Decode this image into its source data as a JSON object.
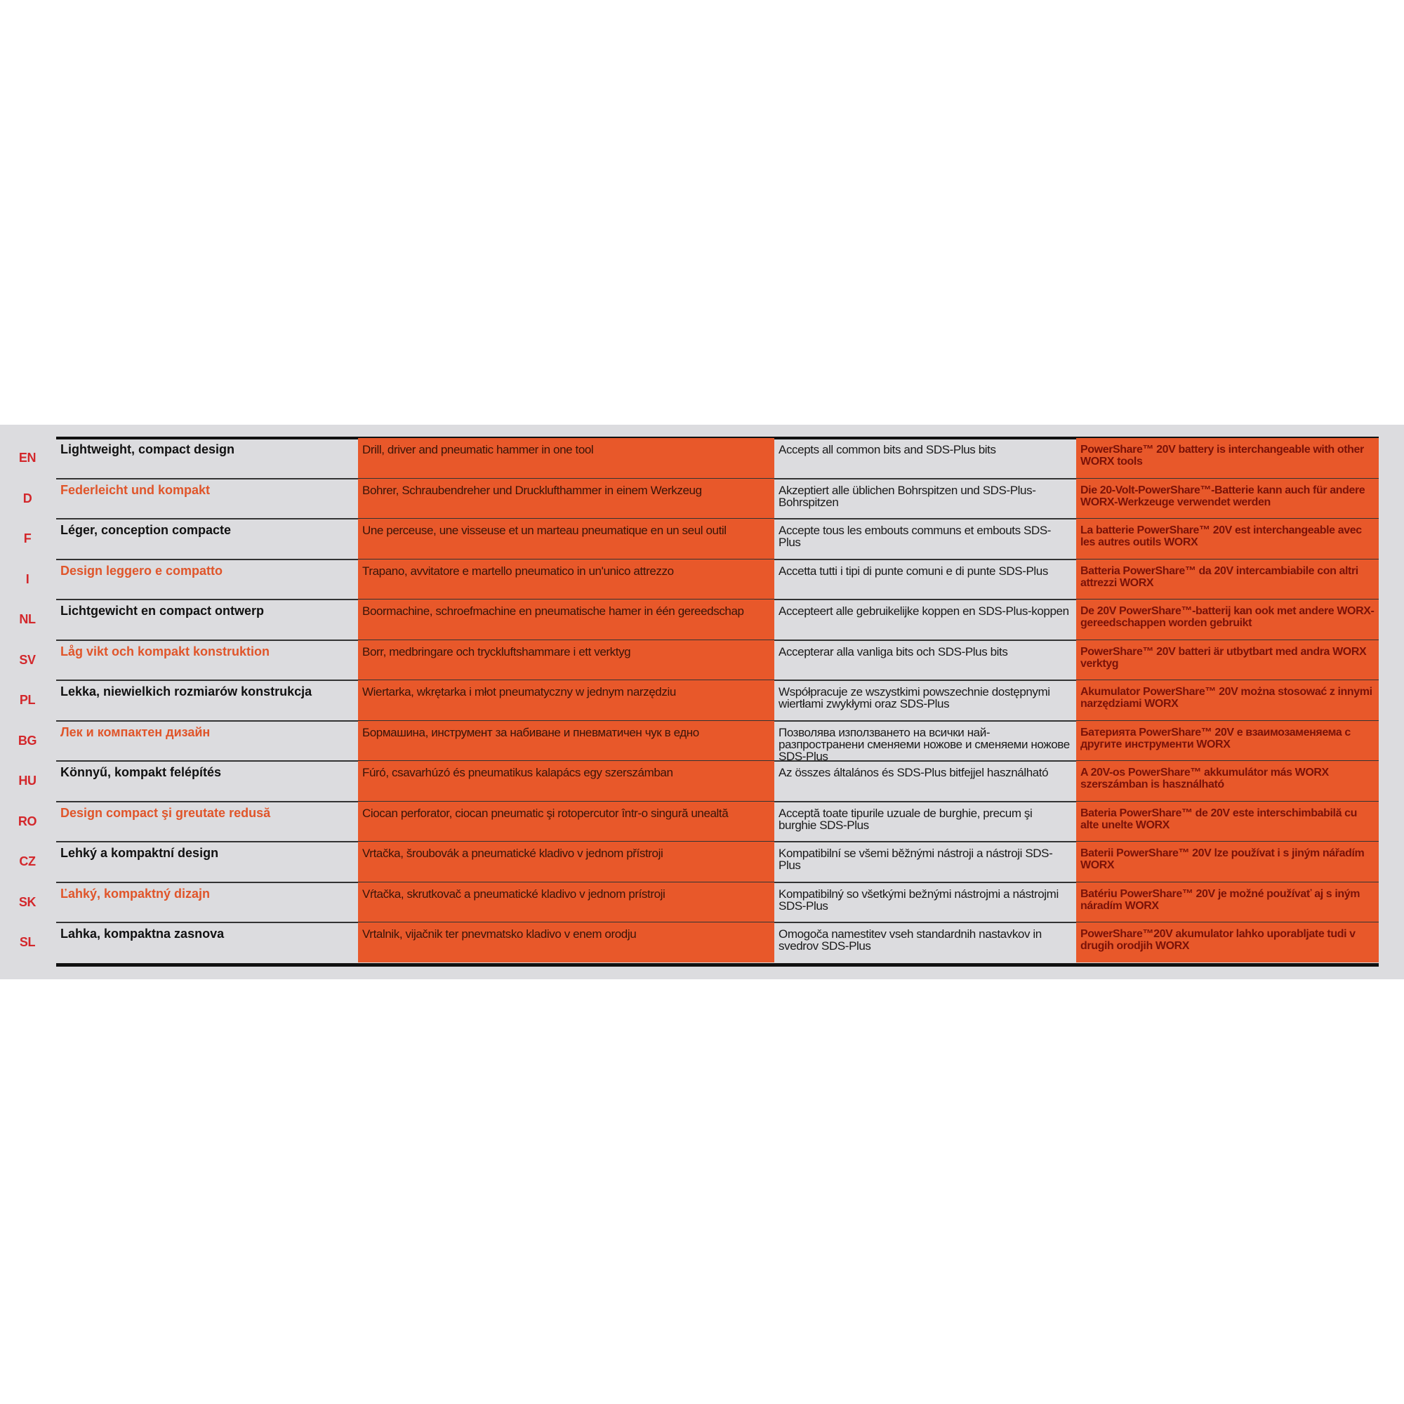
{
  "rows": [
    {
      "code": "EN",
      "feature": "Lightweight, compact design",
      "tool": "Drill, driver and pneumatic hammer in one tool",
      "bits": "Accepts all common bits and SDS-Plus bits",
      "battery": "PowerShare™ 20V battery is interchangeable with other WORX tools"
    },
    {
      "code": "D",
      "feature": "Federleicht und kompakt",
      "tool": "Bohrer, Schraubendreher und Drucklufthammer in einem Werkzeug",
      "bits": "Akzeptiert alle üblichen Bohrspitzen und SDS-Plus-Bohrspitzen",
      "battery": "Die 20-Volt-PowerShare™-Batterie kann auch für andere WORX-Werkzeuge verwendet werden"
    },
    {
      "code": "F",
      "feature": "Léger, conception compacte",
      "tool": "Une perceuse, une visseuse et un marteau pneumatique en un seul outil",
      "bits": "Accepte tous les embouts communs et embouts SDS-Plus",
      "battery": "La batterie PowerShare™ 20V est interchangeable avec les autres outils WORX"
    },
    {
      "code": "I",
      "feature": "Design leggero e compatto",
      "tool": "Trapano, avvitatore e martello pneumatico in un'unico attrezzo",
      "bits": "Accetta tutti i tipi di punte comuni e di punte SDS-Plus",
      "battery": "Batteria PowerShare™ da 20V intercambiabile con altri attrezzi WORX"
    },
    {
      "code": "NL",
      "feature": "Lichtgewicht en compact ontwerp",
      "tool": "Boormachine, schroefmachine en pneumatische hamer in één gereedschap",
      "bits": "Accepteert alle gebruikelijke koppen en SDS-Plus-koppen",
      "battery": "De 20V PowerShare™-batterij kan ook met andere WORX-gereedschappen worden gebruikt"
    },
    {
      "code": "SV",
      "feature": "Låg vikt och kompakt konstruktion",
      "tool": "Borr, medbringare och tryckluftshammare i ett verktyg",
      "bits": "Accepterar alla vanliga bits och SDS-Plus bits",
      "battery": "PowerShare™ 20V batteri är utbytbart med andra WORX verktyg"
    },
    {
      "code": "PL",
      "feature": "Lekka, niewielkich rozmiarów konstrukcja",
      "tool": "Wiertarka, wkrętarka i młot pneumatyczny w jednym narzędziu",
      "bits": "Współpracuje ze wszystkimi powszechnie dostępnymi wiertłami zwykłymi oraz SDS-Plus",
      "battery": "Akumulator PowerShare™ 20V można stosować z innymi narzędziami WORX"
    },
    {
      "code": "BG",
      "feature": "Лек и компактен дизайн",
      "tool": "Бормашина, инструмент за набиване и пневматичен чук в едно",
      "bits": "Позволява използването на всички най-разпространени сменяеми ножове и сменяеми ножове SDS-Plus",
      "battery": "Батерията PowerShare™ 20V е взаимозаменяема с другите инструменти WORX"
    },
    {
      "code": "HU",
      "feature": "Könnyű, kompakt felépítés",
      "tool": "Fúró, csavarhúzó és pneumatikus kalapács egy szerszámban",
      "bits": "Az összes általános és SDS-Plus bitfejjel használható",
      "battery": "A 20V-os PowerShare™ akkumulátor más WORX szerszámban is használható"
    },
    {
      "code": "RO",
      "feature": "Design compact şi greutate redusă",
      "tool": "Ciocan perforator, ciocan pneumatic şi rotopercutor într-o singură unealtă",
      "bits": "Acceptă toate tipurile uzuale de burghie, precum şi burghie SDS-Plus",
      "battery": "Bateria PowerShare™ de 20V este interschimbabilă cu alte unelte WORX"
    },
    {
      "code": "CZ",
      "feature": "Lehký a kompaktní design",
      "tool": "Vrtačka, šroubovák a pneumatické kladivo v jednom přístroji",
      "bits": "Kompatibilní se všemi běžnými nástroji a nástroji SDS-Plus",
      "battery": "Baterii PowerShare™ 20V lze používat i s jiným nářadím WORX"
    },
    {
      "code": "SK",
      "feature": "Ľahký, kompaktný dizajn",
      "tool": "Vŕtačka, skrutkovač a pneumatické kladivo v jednom prístroji",
      "bits": "Kompatibilný so všetkými bežnými nástrojmi a nástrojmi SDS-Plus",
      "battery": "Batériu PowerShare™ 20V je možné používať aj s iným náradím WORX"
    },
    {
      "code": "SL",
      "feature": "Lahka, kompaktna zasnova",
      "tool": "Vrtalnik, vijačnik ter pnevmatsko kladivo v enem orodju",
      "bits": "Omogoča namestitev vseh standardnih nastavkov in svedrov SDS-Plus",
      "battery": "PowerShare™20V akumulator lahko uporabljate tudi v drugih orodjih WORX"
    }
  ]
}
